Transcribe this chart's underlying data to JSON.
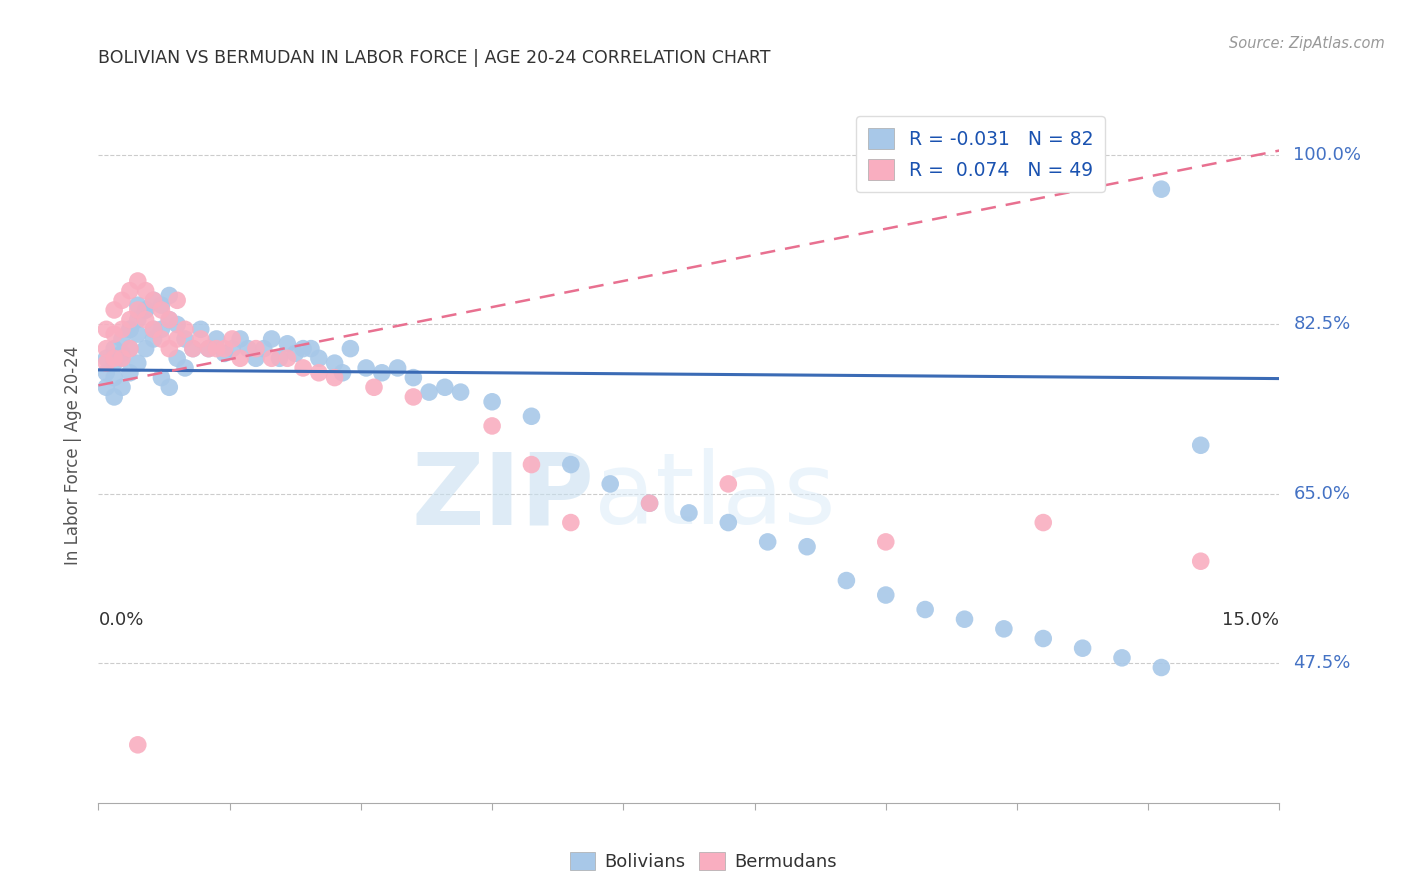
{
  "title": "BOLIVIAN VS BERMUDAN IN LABOR FORCE | AGE 20-24 CORRELATION CHART",
  "source": "Source: ZipAtlas.com",
  "ylabel": "In Labor Force | Age 20-24",
  "ytick_labels": [
    "47.5%",
    "65.0%",
    "82.5%",
    "100.0%"
  ],
  "ytick_values": [
    0.475,
    0.65,
    0.825,
    1.0
  ],
  "xtick_labels": [
    "0.0%",
    "15.0%"
  ],
  "xmin": 0.0,
  "xmax": 0.15,
  "ymin": 0.33,
  "ymax": 1.05,
  "bolivian_color": "#a8c8e8",
  "bermudan_color": "#f9aec0",
  "bolivian_line_color": "#3b6bb5",
  "bermudan_line_color": "#e87090",
  "legend_R_bolivian": "-0.031",
  "legend_N_bolivian": "82",
  "legend_R_bermudan": "0.074",
  "legend_N_bermudan": "49",
  "watermark_zip": "ZIP",
  "watermark_atlas": "atlas",
  "bolivian_scatter_x": [
    0.001,
    0.001,
    0.001,
    0.002,
    0.002,
    0.002,
    0.003,
    0.003,
    0.003,
    0.004,
    0.004,
    0.004,
    0.005,
    0.005,
    0.005,
    0.006,
    0.006,
    0.007,
    0.007,
    0.008,
    0.008,
    0.009,
    0.009,
    0.01,
    0.01,
    0.011,
    0.011,
    0.012,
    0.013,
    0.014,
    0.015,
    0.016,
    0.017,
    0.018,
    0.019,
    0.02,
    0.021,
    0.022,
    0.023,
    0.024,
    0.025,
    0.026,
    0.027,
    0.028,
    0.03,
    0.031,
    0.032,
    0.034,
    0.036,
    0.038,
    0.04,
    0.042,
    0.044,
    0.046,
    0.05,
    0.055,
    0.06,
    0.065,
    0.07,
    0.075,
    0.08,
    0.085,
    0.09,
    0.095,
    0.1,
    0.105,
    0.11,
    0.115,
    0.12,
    0.125,
    0.13,
    0.135,
    0.14,
    0.002,
    0.003,
    0.004,
    0.005,
    0.006,
    0.007,
    0.008,
    0.009,
    0.135
  ],
  "bolivian_scatter_y": [
    0.775,
    0.79,
    0.76,
    0.8,
    0.785,
    0.77,
    0.81,
    0.795,
    0.76,
    0.82,
    0.8,
    0.775,
    0.83,
    0.815,
    0.785,
    0.84,
    0.8,
    0.85,
    0.81,
    0.845,
    0.82,
    0.855,
    0.83,
    0.825,
    0.79,
    0.81,
    0.78,
    0.8,
    0.82,
    0.8,
    0.81,
    0.795,
    0.8,
    0.81,
    0.8,
    0.79,
    0.8,
    0.81,
    0.79,
    0.805,
    0.795,
    0.8,
    0.8,
    0.79,
    0.785,
    0.775,
    0.8,
    0.78,
    0.775,
    0.78,
    0.77,
    0.755,
    0.76,
    0.755,
    0.745,
    0.73,
    0.68,
    0.66,
    0.64,
    0.63,
    0.62,
    0.6,
    0.595,
    0.56,
    0.545,
    0.53,
    0.52,
    0.51,
    0.5,
    0.49,
    0.48,
    0.47,
    0.7,
    0.75,
    0.79,
    0.82,
    0.845,
    0.84,
    0.82,
    0.77,
    0.76,
    0.965
  ],
  "bermudan_scatter_x": [
    0.001,
    0.001,
    0.001,
    0.002,
    0.002,
    0.002,
    0.003,
    0.003,
    0.003,
    0.004,
    0.004,
    0.004,
    0.005,
    0.005,
    0.006,
    0.006,
    0.007,
    0.007,
    0.008,
    0.008,
    0.009,
    0.009,
    0.01,
    0.01,
    0.011,
    0.012,
    0.013,
    0.014,
    0.015,
    0.016,
    0.017,
    0.018,
    0.02,
    0.022,
    0.024,
    0.026,
    0.028,
    0.03,
    0.035,
    0.04,
    0.05,
    0.055,
    0.06,
    0.07,
    0.08,
    0.1,
    0.12,
    0.14,
    0.005
  ],
  "bermudan_scatter_y": [
    0.82,
    0.8,
    0.785,
    0.84,
    0.815,
    0.79,
    0.85,
    0.82,
    0.79,
    0.86,
    0.83,
    0.8,
    0.87,
    0.84,
    0.86,
    0.83,
    0.85,
    0.82,
    0.84,
    0.81,
    0.83,
    0.8,
    0.85,
    0.81,
    0.82,
    0.8,
    0.81,
    0.8,
    0.8,
    0.8,
    0.81,
    0.79,
    0.8,
    0.79,
    0.79,
    0.78,
    0.775,
    0.77,
    0.76,
    0.75,
    0.72,
    0.68,
    0.62,
    0.64,
    0.66,
    0.6,
    0.62,
    0.58,
    0.39
  ],
  "bolivian_line_x0": 0.0,
  "bolivian_line_x1": 0.15,
  "bolivian_line_y0": 0.778,
  "bolivian_line_y1": 0.769,
  "bermudan_line_x0": 0.0,
  "bermudan_line_x1": 0.15,
  "bermudan_line_y0": 0.762,
  "bermudan_line_y1": 1.005
}
